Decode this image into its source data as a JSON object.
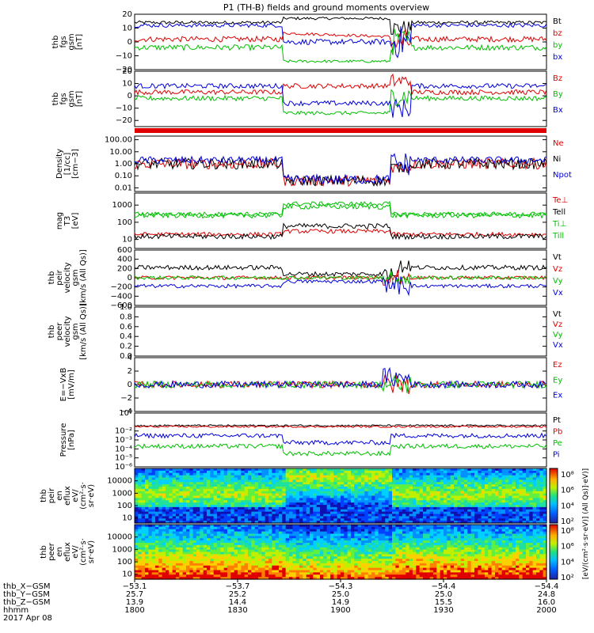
{
  "title": "P1 (TH-B) fields and ground moments overview",
  "colors": {
    "black": "#000000",
    "red": "#e00000",
    "green": "#00c000",
    "blue": "#0000e0"
  },
  "chart_data": [
    {
      "type": "line",
      "id": "p1",
      "ylabel": [
        "thb",
        "fgs",
        "gsm",
        "[nT]"
      ],
      "ylim": [
        -20,
        20
      ],
      "yticks": [
        "20",
        "10",
        "0",
        "−10",
        "−20"
      ],
      "tick_values": [
        20,
        10,
        0,
        -10,
        -20
      ],
      "series": [
        {
          "name": "Bt",
          "color": "black",
          "base": 14
        },
        {
          "name": "bz",
          "color": "red",
          "base": 2
        },
        {
          "name": "by",
          "color": "green",
          "base": -4
        },
        {
          "name": "bx",
          "color": "blue",
          "base": 13
        }
      ]
    },
    {
      "type": "line",
      "id": "p2",
      "ylabel": [
        "thb",
        "fgs",
        "gsm",
        "[nT]"
      ],
      "ylim": [
        -25,
        20
      ],
      "yticks": [
        "20",
        "10",
        "0",
        "−10",
        "−20"
      ],
      "tick_values": [
        20,
        10,
        0,
        -10,
        -20
      ],
      "series": [
        {
          "name": "Bz",
          "color": "red",
          "base": 3
        },
        {
          "name": "By",
          "color": "green",
          "base": -2
        },
        {
          "name": "Bx",
          "color": "blue",
          "base": 9
        }
      ]
    },
    {
      "type": "line",
      "id": "p4",
      "ylabel": [
        "Density",
        "[1/cc]",
        "[cm−3]"
      ],
      "log": true,
      "ylim": [
        0.005,
        200
      ],
      "yticks": [
        "100.00",
        "10.00",
        "1.00",
        "0.10",
        "0.01"
      ],
      "tick_values": [
        100,
        10,
        1,
        0.1,
        0.01
      ],
      "series": [
        {
          "name": "Ne",
          "color": "red"
        },
        {
          "name": "Ni",
          "color": "black"
        },
        {
          "name": "Npot",
          "color": "blue"
        }
      ]
    },
    {
      "type": "line",
      "id": "p5",
      "ylabel": [
        "mag",
        "T3",
        "[eV]"
      ],
      "log": true,
      "ylim": [
        3,
        5000
      ],
      "yticks": [
        "1000",
        "100",
        "10"
      ],
      "tick_values": [
        1000,
        100,
        10
      ],
      "series": [
        {
          "name": "Te⊥",
          "color": "red"
        },
        {
          "name": "Tell",
          "color": "black"
        },
        {
          "name": "Ti⊥",
          "color": "green"
        },
        {
          "name": "Till",
          "color": "green"
        }
      ]
    },
    {
      "type": "line",
      "id": "p6",
      "ylabel": [
        "thb",
        "peir",
        "velocity",
        "gsm",
        "[km/s (All Qs)]"
      ],
      "ylim": [
        -600,
        600
      ],
      "yticks": [
        "600",
        "400",
        "200",
        "0",
        "−200",
        "−400",
        "−600"
      ],
      "tick_values": [
        600,
        400,
        200,
        0,
        -200,
        -400,
        -600
      ],
      "series": [
        {
          "name": "Vt",
          "color": "black"
        },
        {
          "name": "Vz",
          "color": "red"
        },
        {
          "name": "Vy",
          "color": "green"
        },
        {
          "name": "Vx",
          "color": "blue"
        }
      ]
    },
    {
      "type": "line",
      "id": "p7",
      "ylabel": [
        "thb",
        "peer",
        "velocity",
        "gsm",
        "[km/s (All Qs)]"
      ],
      "ylim": [
        0,
        1
      ],
      "yticks": [
        "1.0",
        "0.8",
        "0.6",
        "0.4",
        "0.2",
        "0.0"
      ],
      "tick_values": [
        1,
        0.8,
        0.6,
        0.4,
        0.2,
        0
      ],
      "series": [
        {
          "name": "Vt",
          "color": "black"
        },
        {
          "name": "Vz",
          "color": "red"
        },
        {
          "name": "Vy",
          "color": "green"
        },
        {
          "name": "Vx",
          "color": "blue"
        }
      ]
    },
    {
      "type": "line",
      "id": "p8",
      "ylabel": [
        "E=−VxB",
        "[mV/m]"
      ],
      "ylim": [
        -4,
        4
      ],
      "yticks": [
        "4",
        "2",
        "0",
        "−2",
        "−4"
      ],
      "tick_values": [
        4,
        2,
        0,
        -2,
        -4
      ],
      "series": [
        {
          "name": "Ez",
          "color": "red"
        },
        {
          "name": "Ey",
          "color": "green"
        },
        {
          "name": "Ex",
          "color": "blue"
        }
      ]
    },
    {
      "type": "line",
      "id": "p9",
      "ylabel": [
        "Pressure",
        "[nPa]"
      ],
      "log": true,
      "ylim": [
        1e-06,
        1
      ],
      "yticks": [
        "10⁰",
        "10⁻²",
        "10⁻³",
        "10⁻⁴",
        "10⁻⁵",
        "10⁻⁶"
      ],
      "tick_values": [
        1,
        0.01,
        0.001,
        0.0001,
        1e-05,
        1e-06
      ],
      "series": [
        {
          "name": "Pt",
          "color": "black"
        },
        {
          "name": "Pb",
          "color": "red"
        },
        {
          "name": "Pe",
          "color": "green"
        },
        {
          "name": "Pi",
          "color": "blue"
        }
      ]
    },
    {
      "type": "heatmap",
      "id": "p10",
      "ylabel": [
        "thb",
        "peir",
        "en",
        "eflux",
        "eV/",
        "(cm²·s·",
        "sr·eV)"
      ],
      "log": true,
      "yticks": [
        "10000",
        "1000",
        "100",
        "10"
      ],
      "tick_values": [
        10000,
        1000,
        100,
        10
      ]
    },
    {
      "type": "heatmap",
      "id": "p11",
      "ylabel": [
        "thb",
        "peer",
        "en",
        "eflux",
        "eV/",
        "(cm²·s·",
        "sr·eV)"
      ],
      "log": true,
      "yticks": [
        "10000",
        "1000",
        "100",
        "10"
      ],
      "tick_values": [
        10000,
        1000,
        100,
        10
      ]
    }
  ],
  "colorbar": {
    "label": "[eV/(cm²·s·sr·eV)] (All Qs)]·eV)]",
    "upper_ticks": [
      "10⁸",
      "10⁶",
      "10⁴",
      "10²"
    ],
    "lower_ticks": [
      "10⁸",
      "10⁶",
      "10⁴",
      "10²"
    ]
  },
  "footer": {
    "row_labels": [
      "thb_X−GSM",
      "thb_Y−GSM",
      "thb_Z−GSM",
      "hhmm",
      "2017 Apr 08"
    ],
    "columns": [
      {
        "x": "−53.1",
        "y": "25.7",
        "z": "13.9",
        "hhmm": "1800"
      },
      {
        "x": "−53.7",
        "y": "25.2",
        "z": "14.4",
        "hhmm": "1830"
      },
      {
        "x": "−54.3",
        "y": "25.0",
        "z": "14.9",
        "hhmm": "1900"
      },
      {
        "x": "−54.4",
        "y": "25.0",
        "z": "15.5",
        "hhmm": "1930"
      },
      {
        "x": "−54.4",
        "y": "24.8",
        "z": "16.0",
        "hhmm": "2000"
      }
    ]
  }
}
